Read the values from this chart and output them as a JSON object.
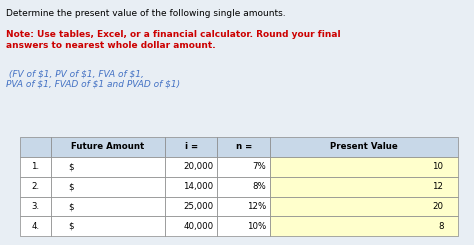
{
  "title_black": "Determine the present value of the following single amounts.",
  "title_red_bold": "Note: Use tables, Excel, or a financial calculator. Round your final\nanswers to nearest whole dollar amount.",
  "title_links": " (FV of $1, PV of $1, FVA of $1,\nPVA of $1, FVAD of $1 and PVAD of $1)",
  "headers": [
    "",
    "Future Amount",
    "i =",
    "n =",
    "Present Value"
  ],
  "rows": [
    [
      "1.",
      "$",
      "20,000",
      "7%",
      "10",
      ""
    ],
    [
      "2.",
      "$",
      "14,000",
      "8%",
      "12",
      ""
    ],
    [
      "3.",
      "$",
      "25,000",
      "12%",
      "20",
      ""
    ],
    [
      "4.",
      "$",
      "40,000",
      "10%",
      "8",
      ""
    ]
  ],
  "header_bg": "#c8d8e8",
  "row_bg_white": "#ffffff",
  "pv_bg": "#ffffcc",
  "border_color": "#888888",
  "text_color_black": "#000000",
  "text_color_red": "#cc0000",
  "text_color_blue": "#4472c4",
  "bg_color": "#e8eef4"
}
